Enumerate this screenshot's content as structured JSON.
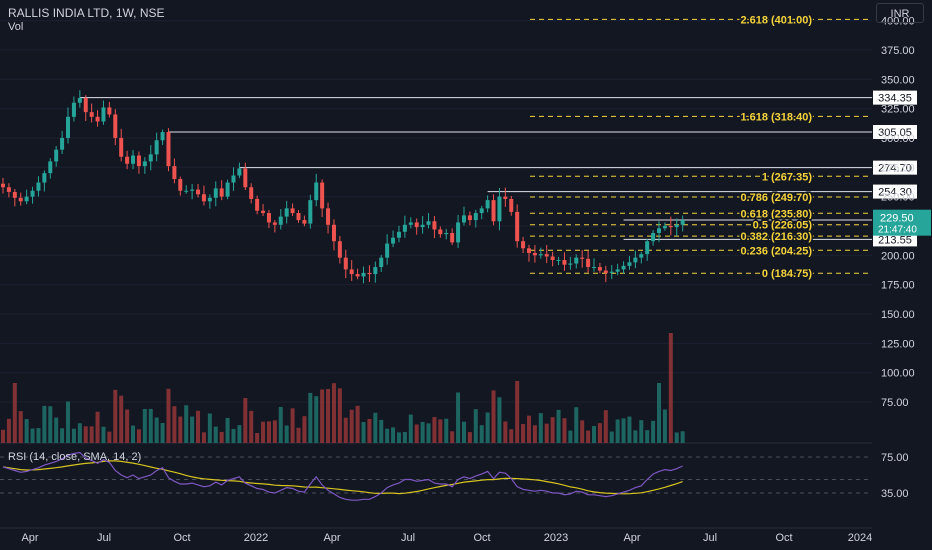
{
  "header": {
    "symbol_title": "RALLIS INDIA LTD, 1W, NSE",
    "volume_label": "Vol",
    "currency": "INR"
  },
  "rsi": {
    "label": "RSI (14, close, SMA, 14, 2)",
    "ticks": [
      "75.00",
      "35.00"
    ]
  },
  "colors": {
    "background": "#131722",
    "up": "#26a69a",
    "down": "#ef5350",
    "fib": "#f5d33a",
    "rsi_line": "#7e57c2",
    "rsi_ma": "#d6c41f",
    "axis_text": "#d1d4dc",
    "box_label_bg": "#ffffff"
  },
  "chart_data": {
    "type": "candlestick",
    "title": "RALLIS INDIA LTD, 1W, NSE",
    "price_axis_ticks": [
      400,
      375,
      350,
      325,
      300,
      275,
      250,
      225,
      200,
      175,
      150,
      125,
      100,
      75
    ],
    "price_axis_tick_labels": [
      "400.00",
      "375.00",
      "350.00",
      "325.00",
      "300.00",
      "275.00",
      "250.00",
      "225.00",
      "200.00",
      "175.00",
      "150.00",
      "125.00",
      "100.00",
      "75.00"
    ],
    "x_tick_labels": [
      "Apr",
      "Jul",
      "Oct",
      "2022",
      "Apr",
      "Jul",
      "Oct",
      "2023",
      "Apr",
      "Jul",
      "Oct",
      "2024"
    ],
    "price_range": [
      168,
      404
    ],
    "fibonacci": [
      {
        "label": "2.618 (401.00)",
        "value": 401.0
      },
      {
        "label": "1.618 (318.40)",
        "value": 318.4
      },
      {
        "label": "1 (267.35)",
        "value": 267.35
      },
      {
        "label": "0.786 (249.70)",
        "value": 249.7
      },
      {
        "label": "0.618 (235.80)",
        "value": 235.8
      },
      {
        "label": "0.5 (226.05)",
        "value": 226.05
      },
      {
        "label": "0.382 (216.30)",
        "value": 216.3
      },
      {
        "label": "0.236 (204.25)",
        "value": 204.25
      },
      {
        "label": "0 (184.75)",
        "value": 184.75
      }
    ],
    "horizontal_lines": [
      {
        "label": "334.35",
        "value": 334.35,
        "start_week": 13
      },
      {
        "label": "305.05",
        "value": 305.05,
        "start_week": 28
      },
      {
        "label": "274.70",
        "value": 274.7,
        "start_week": 40
      },
      {
        "label": "254.30",
        "value": 254.3,
        "start_week": 82
      },
      {
        "label": "230.05",
        "value": 230.05,
        "start_week": 105
      },
      {
        "label": "213.55",
        "value": 213.55,
        "start_week": 105
      }
    ],
    "last_price": {
      "value": 229.5,
      "label": "229.50",
      "countdown": "21:47:40"
    },
    "price_close": [
      258,
      254,
      249,
      246,
      250,
      255,
      262,
      270,
      280,
      290,
      300,
      318,
      330,
      334,
      322,
      318,
      314,
      326,
      320,
      300,
      284,
      278,
      285,
      276,
      280,
      286,
      298,
      305,
      276,
      265,
      255,
      255,
      256,
      252,
      246,
      249,
      257,
      250,
      262,
      268,
      274,
      258,
      248,
      238,
      236,
      228,
      226,
      233,
      240,
      236,
      230,
      227,
      247,
      262,
      240,
      226,
      212,
      198,
      188,
      184,
      182,
      185,
      184,
      190,
      198,
      210,
      215,
      220,
      226,
      228,
      224,
      226,
      229,
      222,
      218,
      219,
      211,
      228,
      234,
      230,
      236,
      240,
      247,
      229,
      250,
      248,
      237,
      212,
      206,
      202,
      200,
      201,
      199,
      196,
      196,
      192,
      193,
      198,
      197,
      190,
      190,
      187,
      185,
      186,
      188,
      191,
      194,
      198,
      201,
      212,
      219,
      223,
      225,
      224,
      226,
      230
    ],
    "rsi_values": [
      64,
      62,
      60,
      58,
      59,
      61,
      63,
      66,
      68,
      70,
      73,
      77,
      79,
      80,
      74,
      71,
      68,
      72,
      69,
      60,
      55,
      52,
      55,
      51,
      53,
      55,
      60,
      63,
      52,
      48,
      45,
      45,
      46,
      44,
      42,
      43,
      47,
      44,
      49,
      51,
      53,
      46,
      43,
      40,
      39,
      36,
      35,
      38,
      41,
      40,
      37,
      36,
      45,
      53,
      44,
      38,
      34,
      30,
      28,
      27,
      27,
      28,
      28,
      31,
      35,
      41,
      44,
      46,
      50,
      50,
      48,
      49,
      50,
      46,
      45,
      45,
      42,
      50,
      53,
      51,
      54,
      56,
      59,
      51,
      58,
      57,
      51,
      42,
      39,
      38,
      37,
      38,
      37,
      35,
      35,
      33,
      34,
      37,
      36,
      33,
      33,
      32,
      31,
      32,
      34,
      36,
      38,
      41,
      43,
      50,
      56,
      59,
      61,
      60,
      62,
      65
    ]
  }
}
